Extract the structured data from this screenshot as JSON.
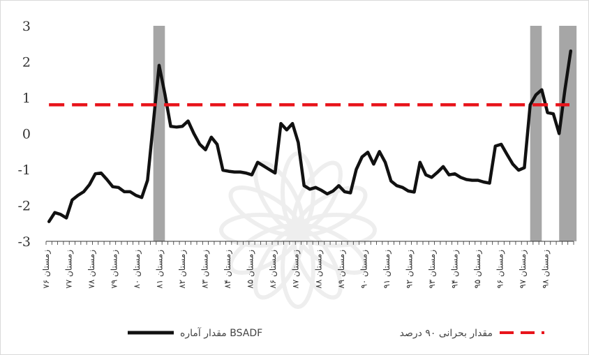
{
  "chart_data": {
    "type": "line",
    "ylim": [
      -3,
      3
    ],
    "yticks": [
      "3",
      "2",
      "1",
      "0",
      "-1",
      "-2",
      "-3"
    ],
    "grid": false,
    "legend_position": "bottom",
    "x_tick_labels": [
      "زمستان ۷۶",
      "زمستان ۷۷",
      "زمستان ۷۸",
      "زمستان ۷۹",
      "زمستان ۸۰",
      "زمستان ۸۱",
      "زمستان ۸۲",
      "زمستان ۸۳",
      "زمستان ۸۴",
      "زمستان ۸۵",
      "زمستان ۸۶",
      "زمستان ۸۷",
      "زمستان ۸۸",
      "زمستان ۸۹",
      "زمستان ۹۰",
      "زمستان ۹۱",
      "زمستان ۹۲",
      "زمستان ۹۳",
      "زمستان ۹۴",
      "زمستان ۹۵",
      "زمستان ۹۶",
      "زمستان ۹۷",
      "زمستان ۹۸"
    ],
    "n_points": 91,
    "series": [
      {
        "name": "مقدار آماره BSADF",
        "color": "#111111",
        "style": "solid",
        "values": [
          -2.45,
          -2.2,
          -2.25,
          -2.35,
          -1.85,
          -1.72,
          -1.62,
          -1.42,
          -1.12,
          -1.1,
          -1.28,
          -1.48,
          -1.5,
          -1.62,
          -1.62,
          -1.72,
          -1.78,
          -1.3,
          0.3,
          1.9,
          1.1,
          0.2,
          0.18,
          0.2,
          0.35,
          0.0,
          -0.3,
          -0.45,
          -0.1,
          -0.3,
          -1.02,
          -1.05,
          -1.07,
          -1.07,
          -1.1,
          -1.15,
          -0.8,
          -0.9,
          -1.0,
          -1.1,
          0.28,
          0.1,
          0.28,
          -0.25,
          -1.45,
          -1.55,
          -1.5,
          -1.58,
          -1.68,
          -1.6,
          -1.45,
          -1.62,
          -1.65,
          -1.0,
          -0.65,
          -0.52,
          -0.85,
          -0.5,
          -0.8,
          -1.32,
          -1.45,
          -1.5,
          -1.6,
          -1.63,
          -0.8,
          -1.15,
          -1.22,
          -1.08,
          -0.92,
          -1.15,
          -1.12,
          -1.22,
          -1.28,
          -1.3,
          -1.3,
          -1.35,
          -1.38,
          -0.35,
          -0.3,
          -0.58,
          -0.85,
          -1.02,
          -0.95,
          0.8,
          1.08,
          1.22,
          0.58,
          0.55,
          0.0,
          1.22,
          2.3
        ],
        "shift_end": 2
      },
      {
        "name": "مقدار بحرانی ۹۰ درصد",
        "color": "#e8141b",
        "style": "dashed",
        "values": [
          0.8
        ]
      }
    ],
    "shaded_regions": [
      {
        "start_index": 18.5,
        "end_index": 20.5
      },
      {
        "start_index": 83.5,
        "end_index": 85.5
      },
      {
        "start_index": 88.5,
        "end_index": 91.5
      }
    ],
    "shade_color": "#a6a6a6"
  }
}
